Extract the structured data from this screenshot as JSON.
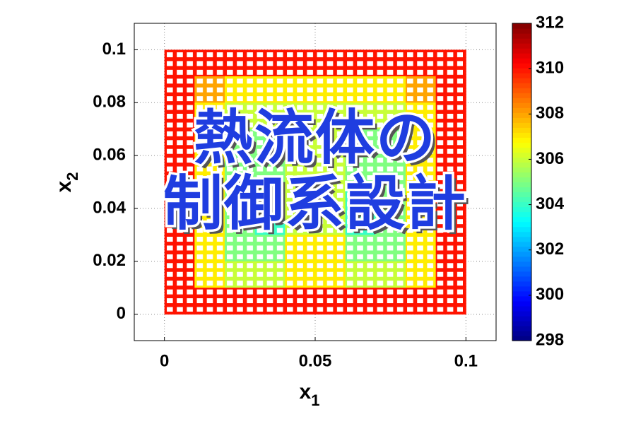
{
  "chart_data": {
    "type": "heatmap",
    "overlay": [
      "熱流体の",
      "制御系設計"
    ],
    "xlabel": {
      "text": "x",
      "sub": "1"
    },
    "ylabel": {
      "text": "x",
      "sub": "2"
    },
    "xlim": [
      -0.01,
      0.11
    ],
    "ylim": [
      -0.01,
      0.11
    ],
    "xticks": [
      0,
      0.05,
      0.1
    ],
    "yticks": [
      0,
      0.02,
      0.04,
      0.06,
      0.08,
      0.1
    ],
    "grid": true,
    "colormap": "jet",
    "clim": [
      298,
      312
    ],
    "cticks": [
      298,
      300,
      302,
      304,
      306,
      308,
      310,
      312
    ],
    "x": [
      0.005,
      0.015,
      0.025,
      0.035,
      0.045,
      0.055,
      0.065,
      0.075,
      0.085,
      0.095
    ],
    "y": [
      0.095,
      0.085,
      0.075,
      0.065,
      0.055,
      0.045,
      0.035,
      0.025,
      0.015,
      0.005
    ],
    "values": [
      [
        310,
        310,
        310,
        310,
        310,
        310,
        310,
        310,
        310,
        310
      ],
      [
        310,
        308,
        307,
        307,
        307,
        307,
        307,
        307,
        308,
        310
      ],
      [
        310,
        307,
        306,
        306,
        306,
        306,
        306,
        306,
        307,
        310
      ],
      [
        310,
        307,
        305,
        305,
        306,
        306,
        305,
        305,
        307,
        310
      ],
      [
        310,
        307,
        305,
        305,
        306,
        306,
        305,
        305,
        307,
        310
      ],
      [
        310,
        307,
        305,
        304,
        306,
        306,
        304,
        305,
        307,
        310
      ],
      [
        310,
        307,
        305,
        304,
        306,
        306,
        304,
        305,
        307,
        310
      ],
      [
        310,
        307,
        305,
        305,
        307,
        307,
        305,
        305,
        307,
        310
      ],
      [
        310,
        307,
        306,
        306,
        307,
        307,
        306,
        306,
        307,
        310
      ],
      [
        310,
        310,
        310,
        310,
        310,
        310,
        310,
        310,
        310,
        310
      ]
    ]
  }
}
